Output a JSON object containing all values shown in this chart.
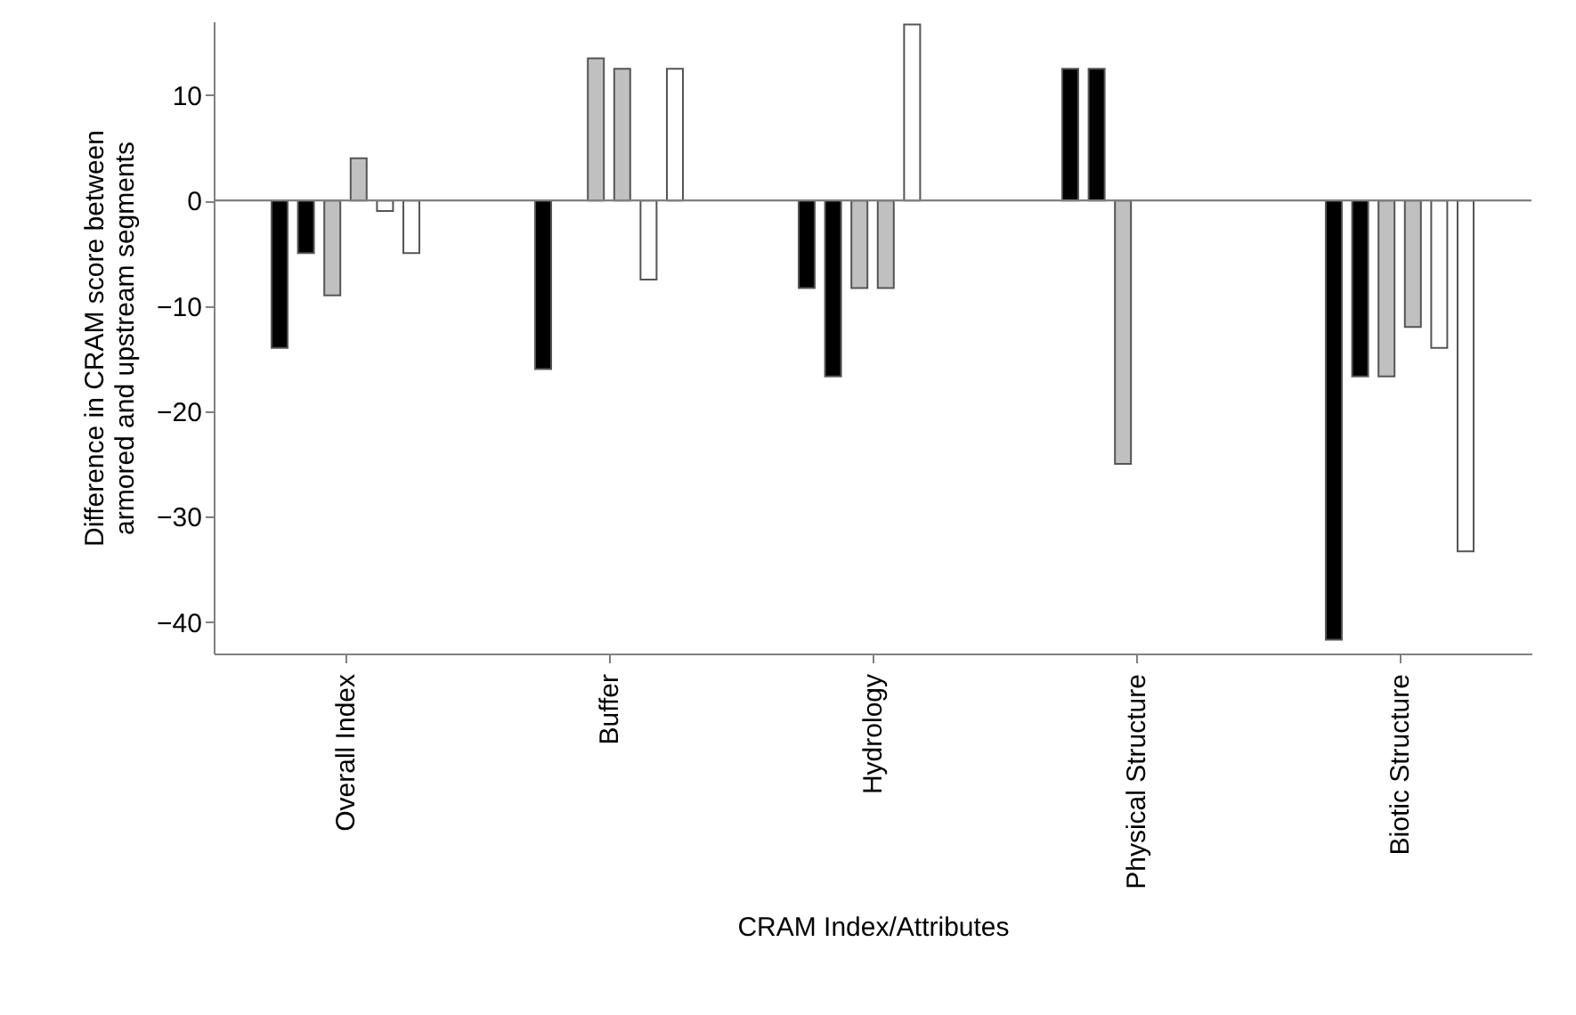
{
  "chart_data": {
    "type": "bar",
    "categories": [
      "Overall Index",
      "Buffer",
      "Hydrology",
      "Physical Structure",
      "Biotic Structure"
    ],
    "series": [
      {
        "color": "#000000",
        "values": [
          -14,
          -16,
          -8.3,
          12.5,
          -41.7
        ]
      },
      {
        "color": "#000000",
        "values": [
          -5,
          null,
          -16.7,
          12.5,
          -16.7
        ]
      },
      {
        "color": "#c0c0c0",
        "values": [
          -9,
          13.5,
          -8.3,
          -25,
          -16.7
        ]
      },
      {
        "color": "#c0c0c0",
        "values": [
          4,
          12.5,
          -8.3,
          null,
          -12
        ]
      },
      {
        "color": "#ffffff",
        "values": [
          -1,
          -7.5,
          16.7,
          null,
          -14
        ]
      },
      {
        "color": "#ffffff",
        "values": [
          -5,
          12.5,
          null,
          null,
          -33.3
        ]
      }
    ],
    "xlabel": "CRAM Index/Attributes",
    "ylabel": "Difference in CRAM score between\narmored and upstream segments",
    "ylim": [
      -43,
      17
    ],
    "yticks": [
      -40,
      -30,
      -20,
      -10,
      0,
      10
    ],
    "ref_lines": [
      {
        "axis": "y",
        "value": 0,
        "color": "#808080"
      }
    ],
    "grid": false
  }
}
